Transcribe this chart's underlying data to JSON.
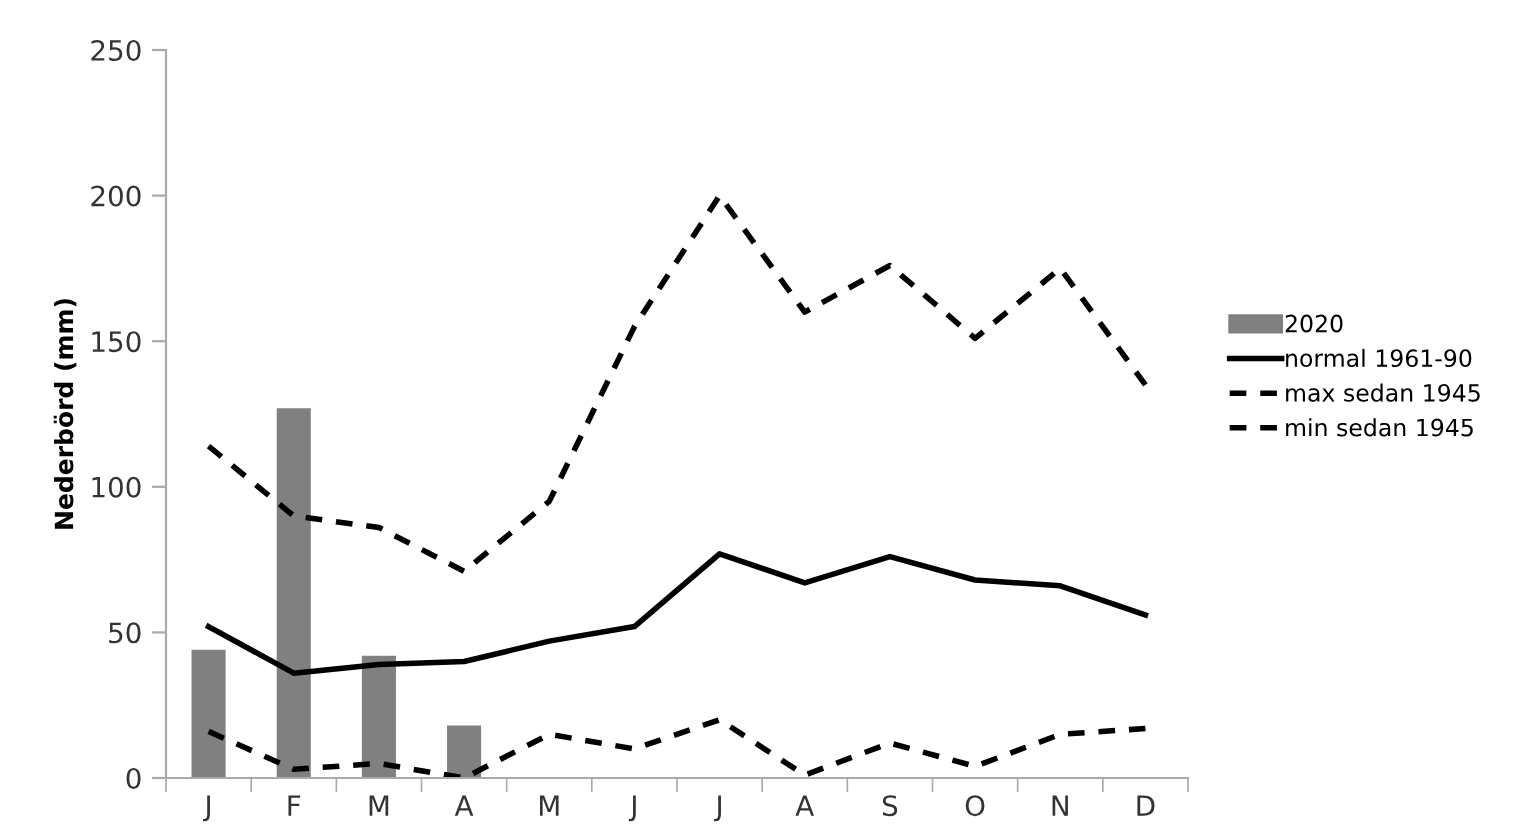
{
  "chart_data": {
    "type": "bar",
    "ylabel": "Nederbörd (mm)",
    "categories": [
      "J",
      "F",
      "M",
      "A",
      "M",
      "J",
      "J",
      "A",
      "S",
      "O",
      "N",
      "D"
    ],
    "series": [
      {
        "name": "2020",
        "color": "#808080",
        "values": [
          44,
          127,
          42,
          18,
          null,
          null,
          null,
          null,
          null,
          null,
          null,
          null
        ]
      },
      {
        "name": "normal 1961-90",
        "type": "line",
        "color": "#000000",
        "line_style": "solid",
        "values": [
          52,
          36,
          39,
          40,
          47,
          52,
          77,
          67,
          76,
          68,
          66,
          56
        ]
      },
      {
        "name": "max sedan 1945",
        "type": "line",
        "color": "#000000",
        "line_style": "dashed",
        "values": [
          114,
          90,
          86,
          71,
          95,
          155,
          200,
          160,
          176,
          151,
          175,
          135
        ]
      },
      {
        "name": "min sedan 1945",
        "type": "line",
        "color": "#000000",
        "line_style": "dashed",
        "values": [
          16,
          3,
          5,
          0,
          15,
          10,
          20,
          1,
          12,
          4,
          15,
          17
        ]
      }
    ],
    "ylim": [
      0,
      250
    ],
    "yticks": [
      0,
      50,
      100,
      150,
      200,
      250
    ],
    "grid": false,
    "legend": "right"
  }
}
